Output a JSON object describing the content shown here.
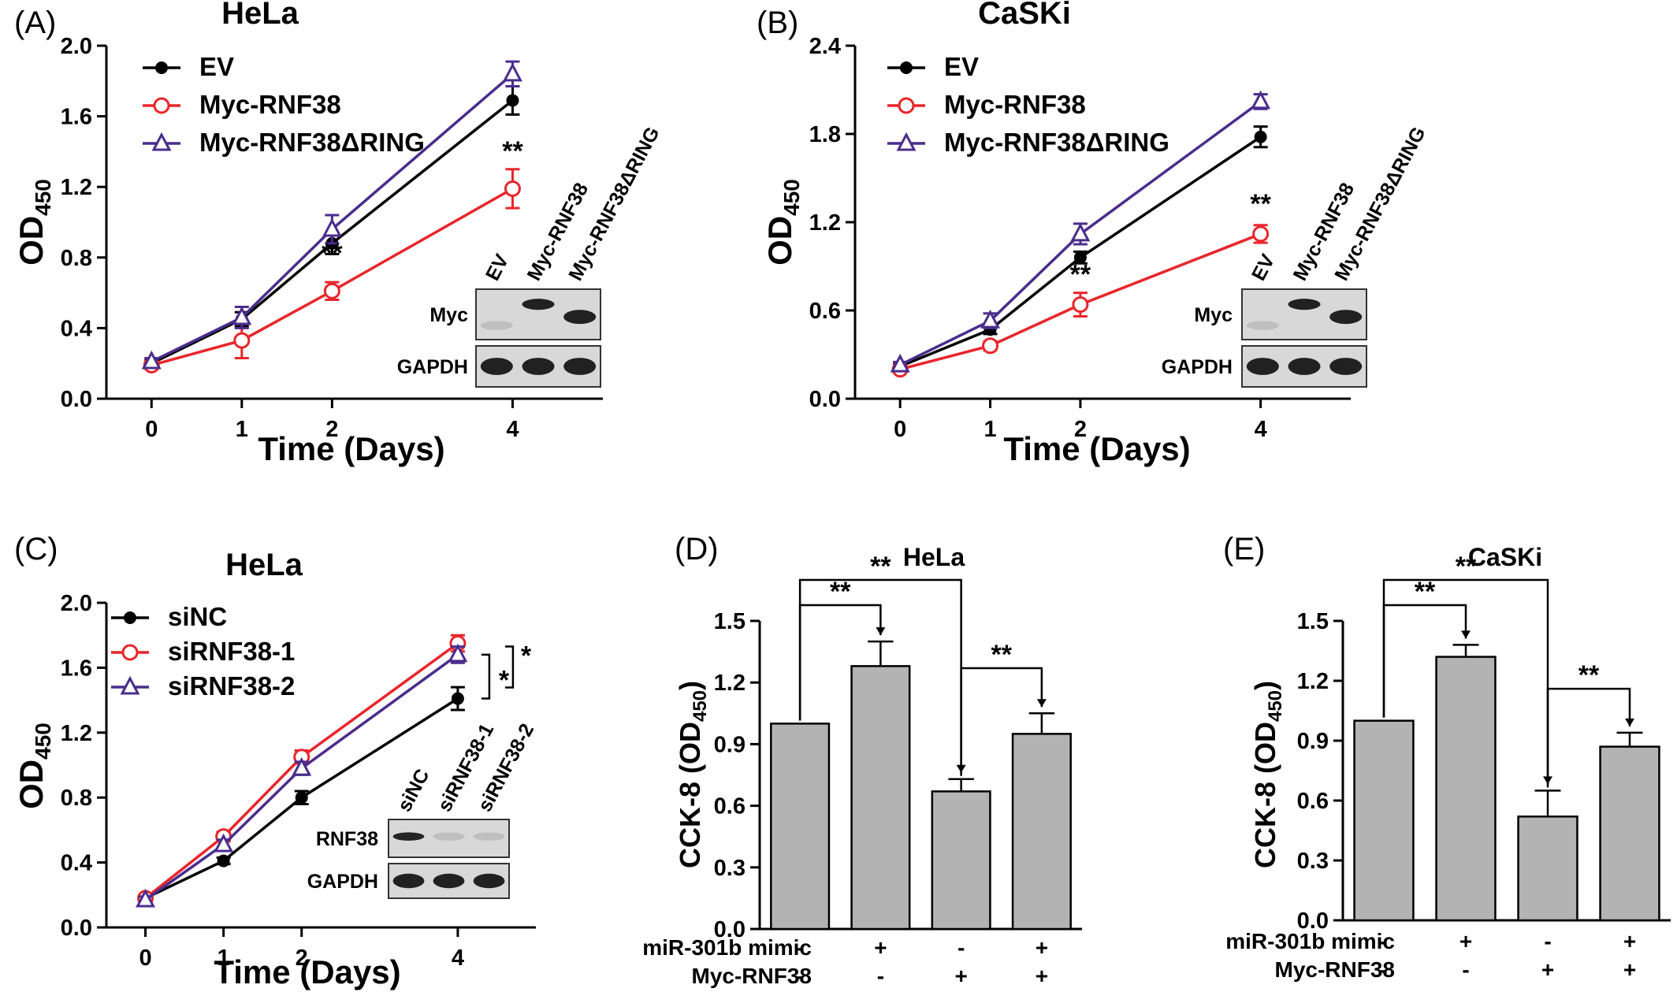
{
  "chart_data": [
    {
      "panel": "(A)",
      "type": "line",
      "title": "HeLa",
      "xlabel": "Time (Days)",
      "ylabel": "OD",
      "ylabel_sub": "450",
      "x": [
        0,
        1,
        2,
        4
      ],
      "xlim": [
        -0.5,
        5
      ],
      "ylim": [
        0,
        2.0
      ],
      "yticks": [
        "0.0",
        "0.4",
        "0.8",
        "1.2",
        "1.6",
        "2.0"
      ],
      "series": [
        {
          "name": "EV",
          "values": [
            0.2,
            0.45,
            0.88,
            1.69
          ],
          "err": [
            0.02,
            0.04,
            0.06,
            0.08
          ],
          "color": "#000000",
          "marker": "dot"
        },
        {
          "name": "Myc-RNF38",
          "values": [
            0.19,
            0.33,
            0.61,
            1.19
          ],
          "err": [
            0.02,
            0.1,
            0.05,
            0.11
          ],
          "color": "#e8262b",
          "marker": "circle"
        },
        {
          "name": "Myc-RNF38ΔRING",
          "values": [
            0.21,
            0.46,
            0.96,
            1.84
          ],
          "err": [
            0.02,
            0.06,
            0.08,
            0.07
          ],
          "color": "#4a2d8c",
          "marker": "triangle"
        }
      ],
      "annotations": [
        {
          "x": 2,
          "y": 0.61,
          "text": "**"
        },
        {
          "x": 4,
          "y": 1.19,
          "text": "**"
        }
      ],
      "blot": {
        "lanes": [
          "EV",
          "Myc-RNF38",
          "Myc-RNF38ΔRING"
        ],
        "rows": [
          "Myc",
          "GAPDH"
        ]
      }
    },
    {
      "panel": "(B)",
      "type": "line",
      "title": "CaSKi",
      "xlabel": "Time (Days)",
      "ylabel": "OD",
      "ylabel_sub": "450",
      "x": [
        0,
        1,
        2,
        4
      ],
      "xlim": [
        -0.5,
        5
      ],
      "ylim": [
        0,
        2.4
      ],
      "yticks": [
        "0.0",
        "0.6",
        "1.2",
        "1.8",
        "2.4"
      ],
      "series": [
        {
          "name": "EV",
          "values": [
            0.22,
            0.47,
            0.96,
            1.78
          ],
          "err": [
            0.02,
            0.03,
            0.04,
            0.07
          ],
          "color": "#000000",
          "marker": "dot"
        },
        {
          "name": "Myc-RNF38",
          "values": [
            0.2,
            0.36,
            0.64,
            1.12
          ],
          "err": [
            0.02,
            0.03,
            0.08,
            0.06
          ],
          "color": "#e8262b",
          "marker": "circle"
        },
        {
          "name": "Myc-RNF38ΔRING",
          "values": [
            0.23,
            0.53,
            1.12,
            2.02
          ],
          "err": [
            0.02,
            0.05,
            0.07,
            0.05
          ],
          "color": "#4a2d8c",
          "marker": "triangle"
        }
      ],
      "annotations": [
        {
          "x": 2,
          "y": 0.64,
          "text": "**"
        },
        {
          "x": 4,
          "y": 1.12,
          "text": "**"
        }
      ],
      "blot": {
        "lanes": [
          "EV",
          "Myc-RNF38",
          "Myc-RNF38ΔRING"
        ],
        "rows": [
          "Myc",
          "GAPDH"
        ]
      }
    },
    {
      "panel": "(C)",
      "type": "line",
      "title": "HeLa",
      "xlabel": "Time (Days)",
      "ylabel": "OD",
      "ylabel_sub": "450",
      "x": [
        0,
        1,
        2,
        4
      ],
      "xlim": [
        -0.5,
        5
      ],
      "ylim": [
        0,
        2.0
      ],
      "yticks": [
        "0.0",
        "0.4",
        "0.8",
        "1.2",
        "1.6",
        "2.0"
      ],
      "series": [
        {
          "name": "siNC",
          "values": [
            0.18,
            0.41,
            0.8,
            1.41
          ],
          "err": [
            0.02,
            0.02,
            0.04,
            0.07
          ],
          "color": "#000000",
          "marker": "dot"
        },
        {
          "name": "siRNF38-1",
          "values": [
            0.18,
            0.56,
            1.05,
            1.75
          ],
          "err": [
            0.02,
            0.03,
            0.04,
            0.05
          ],
          "color": "#e8262b",
          "marker": "circle"
        },
        {
          "name": "siRNF38-2",
          "values": [
            0.17,
            0.51,
            0.98,
            1.68
          ],
          "err": [
            0.02,
            0.03,
            0.04,
            0.05
          ],
          "color": "#4a2d8c",
          "marker": "triangle"
        }
      ],
      "annotations": [
        {
          "text": "*"
        },
        {
          "text": "*"
        }
      ],
      "blot": {
        "lanes": [
          "siNC",
          "siRNF38-1",
          "siRNF38-2"
        ],
        "rows": [
          "RNF38",
          "GAPDH"
        ]
      }
    },
    {
      "panel": "(D)",
      "type": "bar",
      "title": "HeLa",
      "ylabel": "CCK-8 (OD",
      "ylabel_sub": "450",
      "ylabel_end": ")",
      "ylim": [
        0,
        1.5
      ],
      "yticks": [
        "0.0",
        "0.3",
        "0.6",
        "0.9",
        "1.2",
        "1.5"
      ],
      "values": [
        1.0,
        1.28,
        0.67,
        0.95
      ],
      "err": [
        0.0,
        0.12,
        0.06,
        0.1
      ],
      "conditions": [
        {
          "name": "miR-301b mimic",
          "signs": [
            "-",
            "+",
            "-",
            "+"
          ]
        },
        {
          "name": "Myc-RNF38",
          "signs": [
            "-",
            "-",
            "+",
            "+"
          ]
        }
      ],
      "comparisons": [
        {
          "from": 0,
          "to": 1,
          "text": "**"
        },
        {
          "from": 0,
          "to": 2,
          "text": "**"
        },
        {
          "from": 2,
          "to": 3,
          "text": "**"
        }
      ]
    },
    {
      "panel": "(E)",
      "type": "bar",
      "title": "CaSKi",
      "ylabel": "CCK-8 (OD",
      "ylabel_sub": "450",
      "ylabel_end": ")",
      "ylim": [
        0,
        1.5
      ],
      "yticks": [
        "0.0",
        "0.3",
        "0.6",
        "0.9",
        "1.2",
        "1.5"
      ],
      "values": [
        1.0,
        1.32,
        0.52,
        0.87
      ],
      "err": [
        0.0,
        0.06,
        0.13,
        0.07
      ],
      "conditions": [
        {
          "name": "miR-301b mimic",
          "signs": [
            "-",
            "+",
            "-",
            "+"
          ]
        },
        {
          "name": "Myc-RNF38",
          "signs": [
            "-",
            "-",
            "+",
            "+"
          ]
        }
      ],
      "comparisons": [
        {
          "from": 0,
          "to": 1,
          "text": "**"
        },
        {
          "from": 0,
          "to": 2,
          "text": "**"
        },
        {
          "from": 2,
          "to": 3,
          "text": "**"
        }
      ]
    }
  ]
}
